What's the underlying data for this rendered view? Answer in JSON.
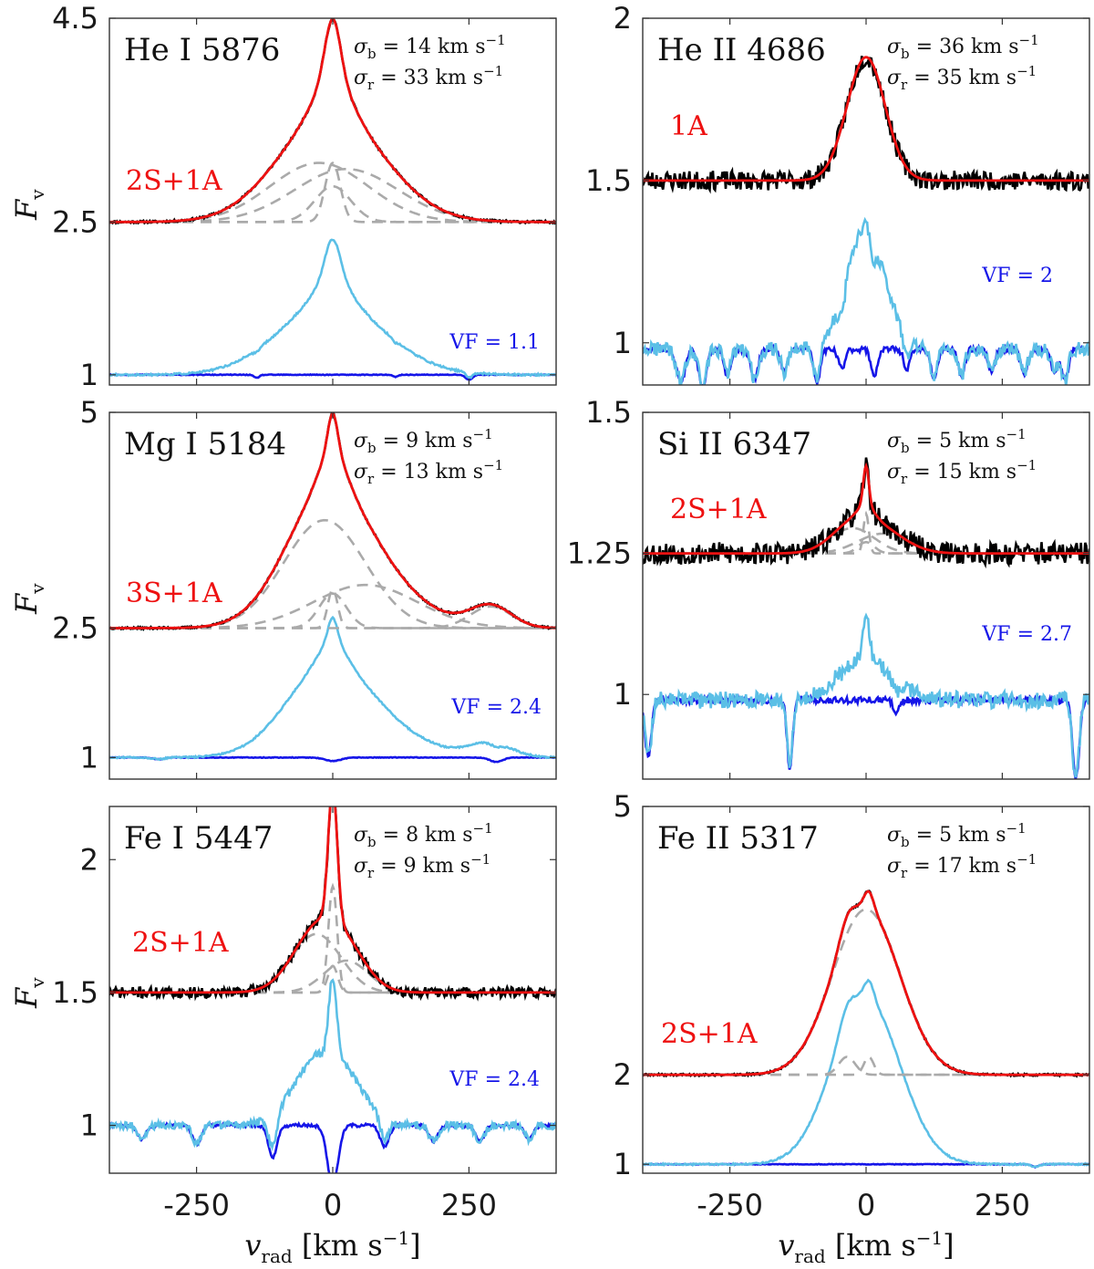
{
  "chart_data": [
    {
      "type": "line",
      "title": "He I 5876",
      "model": "2S+1A",
      "sigma_b": "14",
      "sigma_r": "33",
      "vf": "1.1",
      "ylabel": "F",
      "ylabel_sub": "v",
      "yticks": [
        "4.5",
        "2.5",
        "1"
      ],
      "ytick_values": [
        4.5,
        2.5,
        1
      ],
      "ylim": [
        0.9,
        4.5
      ],
      "xlim": [
        -410,
        410
      ],
      "baseline": 2.5,
      "profile_offset": 1,
      "components": [
        {
          "amp": 0.58,
          "center": 0,
          "sigma": 14
        },
        {
          "amp": 0.58,
          "center": -25,
          "sigma": 90
        },
        {
          "amp": 0.52,
          "center": 25,
          "sigma": 95
        },
        {
          "amp": 0.35,
          "center": 0,
          "sigma": 33
        }
      ],
      "veil": {
        "level": 1.0,
        "dips": [
          {
            "center": -140,
            "depth": 0.03,
            "width": 5
          },
          {
            "center": 250,
            "depth": 0.05,
            "width": 6
          },
          {
            "center": 115,
            "depth": 0.02,
            "width": 5
          }
        ]
      },
      "noise": 0.012,
      "seed": 11
    },
    {
      "type": "line",
      "title": "He II 4686",
      "model": "1A",
      "sigma_b": "36",
      "sigma_r": "35",
      "vf": "2",
      "ylabel": "",
      "ylabel_sub": "",
      "yticks": [
        "2",
        "1.5",
        "1"
      ],
      "ytick_values": [
        2,
        1.5,
        1
      ],
      "ylim": [
        0.87,
        2.0
      ],
      "xlim": [
        -410,
        410
      ],
      "baseline": 1.5,
      "profile_offset": 0.5,
      "components": [
        {
          "amp": 0.38,
          "center": 0,
          "sigma": 35
        }
      ],
      "veil": {
        "level": 0.98,
        "dips": [
          {
            "center": -340,
            "depth": 0.1,
            "width": 8
          },
          {
            "center": -300,
            "depth": 0.12,
            "width": 7
          },
          {
            "center": -255,
            "depth": 0.08,
            "width": 6
          },
          {
            "center": -205,
            "depth": 0.09,
            "width": 7
          },
          {
            "center": -150,
            "depth": 0.07,
            "width": 6
          },
          {
            "center": -90,
            "depth": 0.1,
            "width": 6
          },
          {
            "center": -45,
            "depth": 0.06,
            "width": 6
          },
          {
            "center": 15,
            "depth": 0.08,
            "width": 6
          },
          {
            "center": 75,
            "depth": 0.06,
            "width": 6
          },
          {
            "center": 125,
            "depth": 0.09,
            "width": 6
          },
          {
            "center": 175,
            "depth": 0.08,
            "width": 6
          },
          {
            "center": 230,
            "depth": 0.07,
            "width": 6
          },
          {
            "center": 290,
            "depth": 0.08,
            "width": 6
          },
          {
            "center": 345,
            "depth": 0.07,
            "width": 6
          },
          {
            "center": 365,
            "depth": 0.1,
            "width": 6
          }
        ]
      },
      "noise": 0.03,
      "seed": 23
    },
    {
      "type": "line",
      "title": "Mg I 5184",
      "model": "3S+1A",
      "sigma_b": "9",
      "sigma_r": "13",
      "vf": "2.4",
      "ylabel": "F",
      "ylabel_sub": "v",
      "yticks": [
        "5",
        "2.5",
        "1"
      ],
      "ytick_values": [
        5,
        2.5,
        1
      ],
      "ylim": [
        0.75,
        5.0
      ],
      "xlim": [
        -410,
        410
      ],
      "baseline": 2.5,
      "profile_offset": 1,
      "components": [
        {
          "amp": 0.45,
          "center": 0,
          "sigma": 9
        },
        {
          "amp": 1.25,
          "center": -15,
          "sigma": 75
        },
        {
          "amp": 0.5,
          "center": 60,
          "sigma": 95
        },
        {
          "amp": 0.4,
          "center": 0,
          "sigma": 25
        },
        {
          "amp": 0.25,
          "center": 290,
          "sigma": 38
        }
      ],
      "veil": {
        "level": 1.0,
        "dips": [
          {
            "center": 0,
            "depth": 0.04,
            "width": 15
          },
          {
            "center": 300,
            "depth": 0.05,
            "width": 12
          },
          {
            "center": -320,
            "depth": 0.02,
            "width": 10
          }
        ]
      },
      "noise": 0.012,
      "seed": 37
    },
    {
      "type": "line",
      "title": "Si II 6347",
      "model": "2S+1A",
      "sigma_b": "5",
      "sigma_r": "15",
      "vf": "2.7",
      "ylabel": "",
      "ylabel_sub": "",
      "yticks": [
        "1.5",
        "1.25",
        "1"
      ],
      "ytick_values": [
        1.5,
        1.25,
        1
      ],
      "ylim": [
        0.85,
        1.5
      ],
      "xlim": [
        -410,
        410
      ],
      "baseline": 1.25,
      "profile_offset": 0.25,
      "components": [
        {
          "amp": 0.07,
          "center": 0,
          "sigma": 5
        },
        {
          "amp": 0.045,
          "center": -25,
          "sigma": 40
        },
        {
          "amp": 0.035,
          "center": 30,
          "sigma": 45
        },
        {
          "amp": 0.02,
          "center": 0,
          "sigma": 15
        }
      ],
      "veil": {
        "level": 0.99,
        "dips": [
          {
            "center": -400,
            "depth": 0.1,
            "width": 6
          },
          {
            "center": -140,
            "depth": 0.12,
            "width": 5
          },
          {
            "center": 385,
            "depth": 0.14,
            "width": 6
          },
          {
            "center": 55,
            "depth": 0.02,
            "width": 6
          }
        ]
      },
      "noise": 0.02,
      "seed": 53
    },
    {
      "type": "line",
      "title": "Fe I 5447",
      "model": "2S+1A",
      "sigma_b": "8",
      "sigma_r": "9",
      "vf": "2.4",
      "ylabel": "F",
      "ylabel_sub": "v",
      "yticks": [
        "2",
        "1.5",
        "1"
      ],
      "ytick_values": [
        2,
        1.5,
        1
      ],
      "ylim": [
        0.82,
        2.2
      ],
      "xlim": [
        -410,
        410
      ],
      "baseline": 1.5,
      "profile_offset": 0.5,
      "components": [
        {
          "amp": 0.4,
          "center": 0,
          "sigma": 8
        },
        {
          "amp": 0.22,
          "center": -30,
          "sigma": 45
        },
        {
          "amp": 0.12,
          "center": 25,
          "sigma": 40
        },
        {
          "amp": 0.1,
          "center": 0,
          "sigma": 9
        }
      ],
      "veil": {
        "level": 1.0,
        "dips": [
          {
            "center": -350,
            "depth": 0.05,
            "width": 8
          },
          {
            "center": -250,
            "depth": 0.07,
            "width": 8
          },
          {
            "center": -110,
            "depth": 0.12,
            "width": 8
          },
          {
            "center": 0,
            "depth": 0.22,
            "width": 10
          },
          {
            "center": 95,
            "depth": 0.08,
            "width": 8
          },
          {
            "center": 185,
            "depth": 0.06,
            "width": 8
          },
          {
            "center": 270,
            "depth": 0.06,
            "width": 8
          },
          {
            "center": 360,
            "depth": 0.05,
            "width": 8
          }
        ]
      },
      "noise": 0.02,
      "seed": 71
    },
    {
      "type": "line",
      "title": "Fe II 5317",
      "model": "2S+1A",
      "sigma_b": "5",
      "sigma_r": "17",
      "vf": "",
      "ylabel": "",
      "ylabel_sub": "",
      "yticks": [
        "5",
        "2",
        "1"
      ],
      "ytick_values": [
        5,
        2,
        1
      ],
      "ylim": [
        0.9,
        5.0
      ],
      "xlim": [
        -410,
        410
      ],
      "baseline": 2.0,
      "profile_offset": 1,
      "components": [
        {
          "amp": 1.85,
          "center": 0,
          "sigma": 62
        },
        {
          "amp": 0.2,
          "center": -35,
          "sigma": 15
        },
        {
          "amp": 0.2,
          "center": 5,
          "sigma": 9
        }
      ],
      "veil": {
        "level": 1.0,
        "dips": [
          {
            "center": 310,
            "depth": 0.03,
            "width": 6
          }
        ]
      },
      "noise": 0.012,
      "seed": 89
    }
  ],
  "xticks": [
    "-250",
    "0",
    "250"
  ],
  "xtick_values": [
    -250,
    0,
    250
  ],
  "xlabel": "v",
  "xlabel_sub": "rad",
  "xlabel_units": " [km s",
  "xlabel_exp": "−1",
  "xlabel_close": "]",
  "sigma_unit": " km s",
  "sigma_exp": "−1",
  "vf_prefix": "VF = ",
  "colors": {
    "observed": "#000000",
    "model": "#ee1111",
    "components": "#aaaaaa",
    "residual": "#5bbfe6",
    "veiled": "#1515e8"
  }
}
